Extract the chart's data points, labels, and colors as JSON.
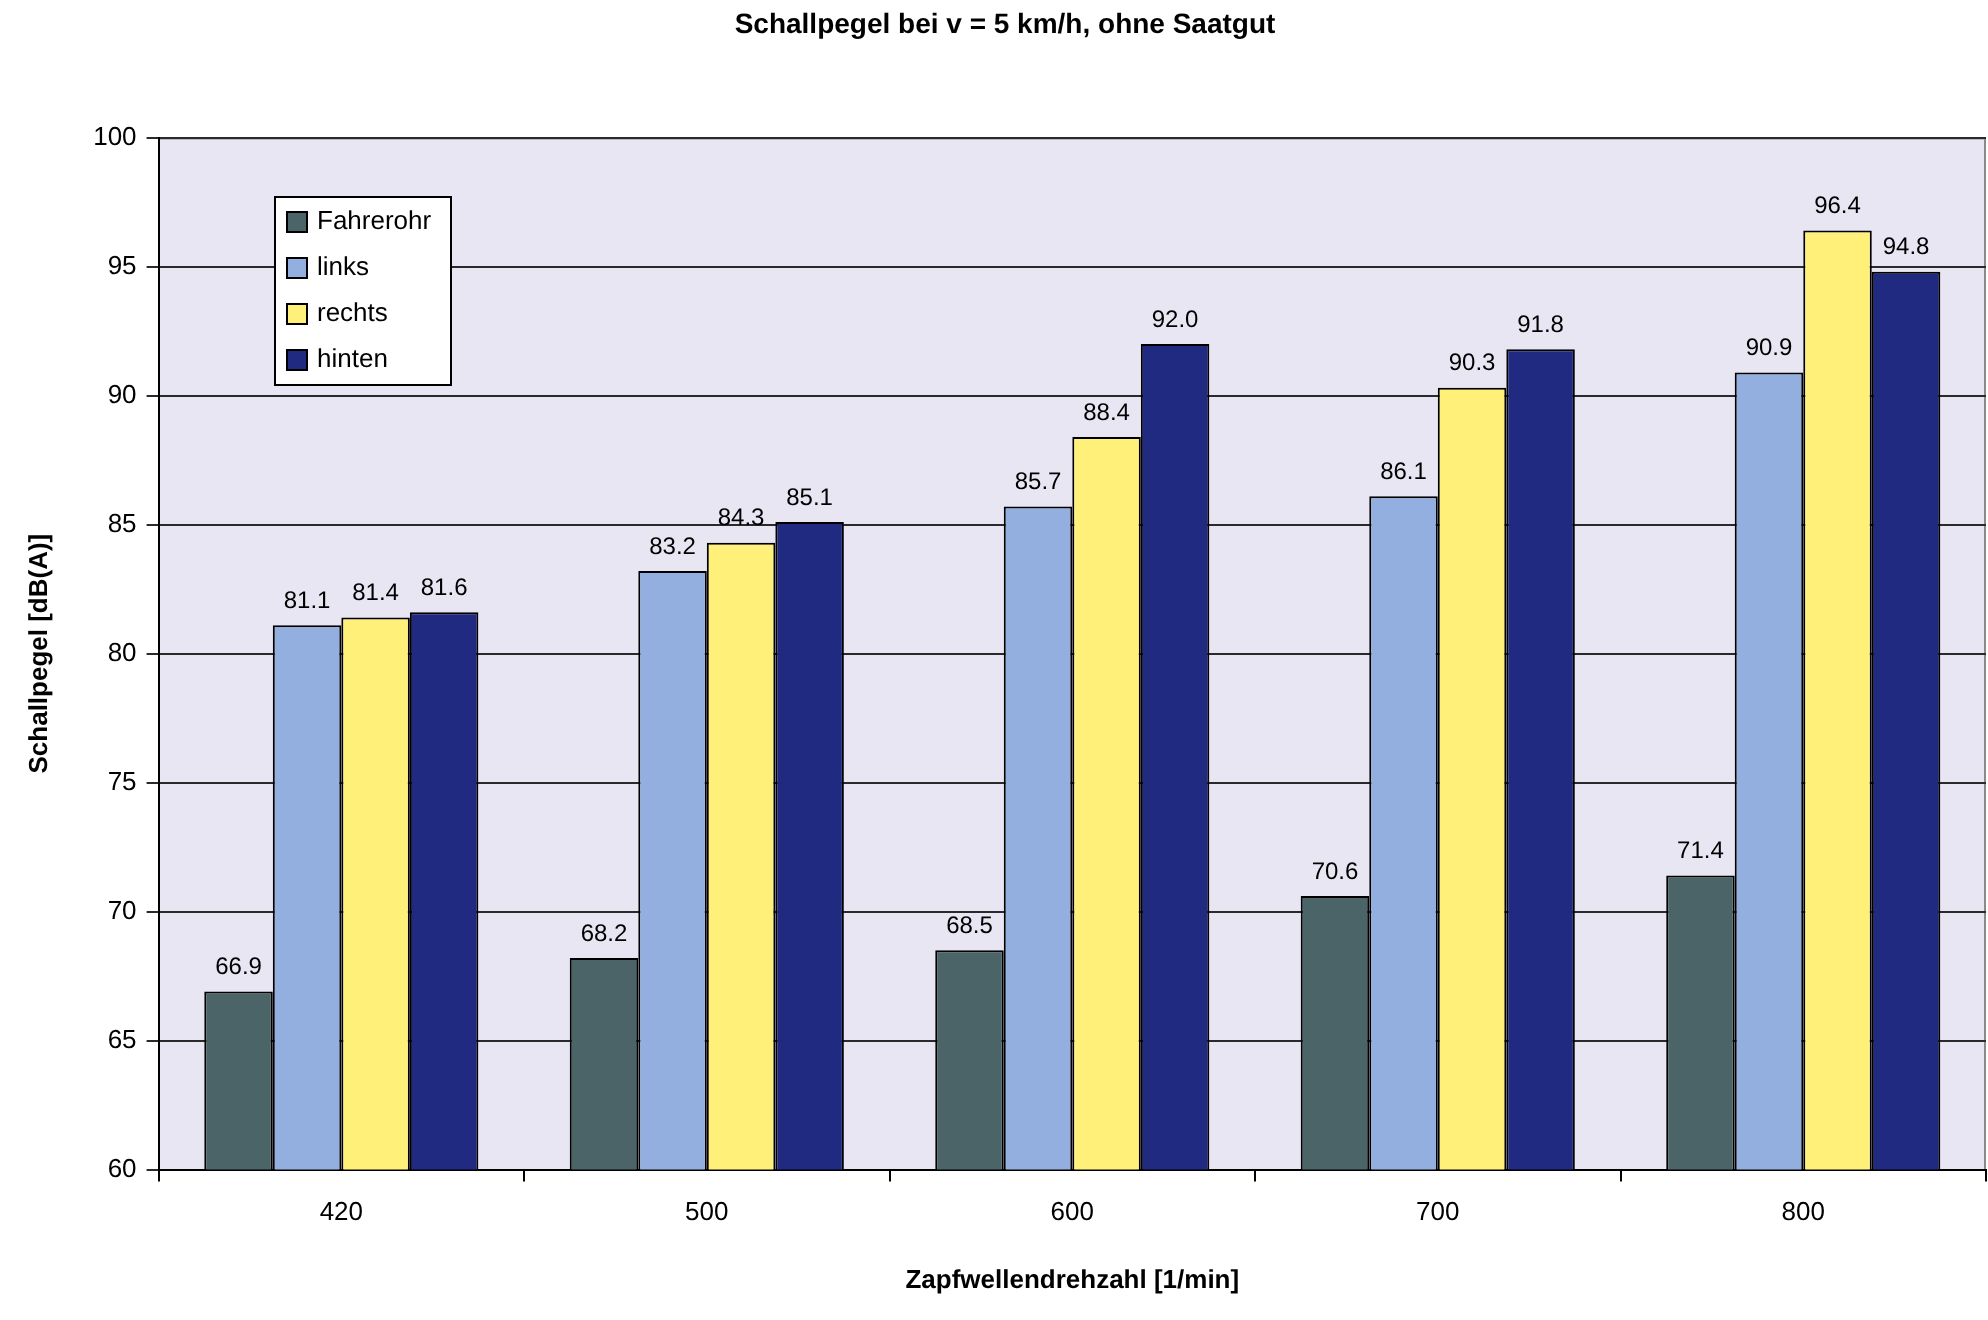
{
  "chart_data": {
    "type": "bar",
    "title": "Schallpegel bei v = 5 km/h, ohne Saatgut",
    "xlabel": "Zapfwellendrehzahl [1/min]",
    "ylabel": "Schallpegel [dB(A)]",
    "categories": [
      "420",
      "500",
      "600",
      "700",
      "800"
    ],
    "series": [
      {
        "name": "Fahrerohr",
        "color": "#4b6468",
        "values": [
          66.9,
          68.2,
          68.5,
          70.6,
          71.4
        ],
        "value_labels": [
          "66.9",
          "68.2",
          "68.5",
          "70.6",
          "71.4"
        ]
      },
      {
        "name": "links",
        "color": "#93afdf",
        "values": [
          81.1,
          83.2,
          85.7,
          86.1,
          90.9
        ],
        "value_labels": [
          "81.1",
          "83.2",
          "85.7",
          "86.1",
          "90.9"
        ]
      },
      {
        "name": "rechts",
        "color": "#fff07a",
        "values": [
          81.4,
          84.3,
          88.4,
          90.3,
          96.4
        ],
        "value_labels": [
          "81.4",
          "84.3",
          "88.4",
          "90.3",
          "96.4"
        ]
      },
      {
        "name": "hinten",
        "color": "#1f2a80",
        "values": [
          81.6,
          85.1,
          92.0,
          91.8,
          94.8
        ],
        "value_labels": [
          "81.6",
          "85.1",
          "92.0",
          "91.8",
          "94.8"
        ]
      }
    ],
    "ylim": [
      60,
      100
    ],
    "yticks": [
      60,
      65,
      70,
      75,
      80,
      85,
      90,
      95,
      100
    ],
    "grid": "y",
    "legend": "top left"
  }
}
